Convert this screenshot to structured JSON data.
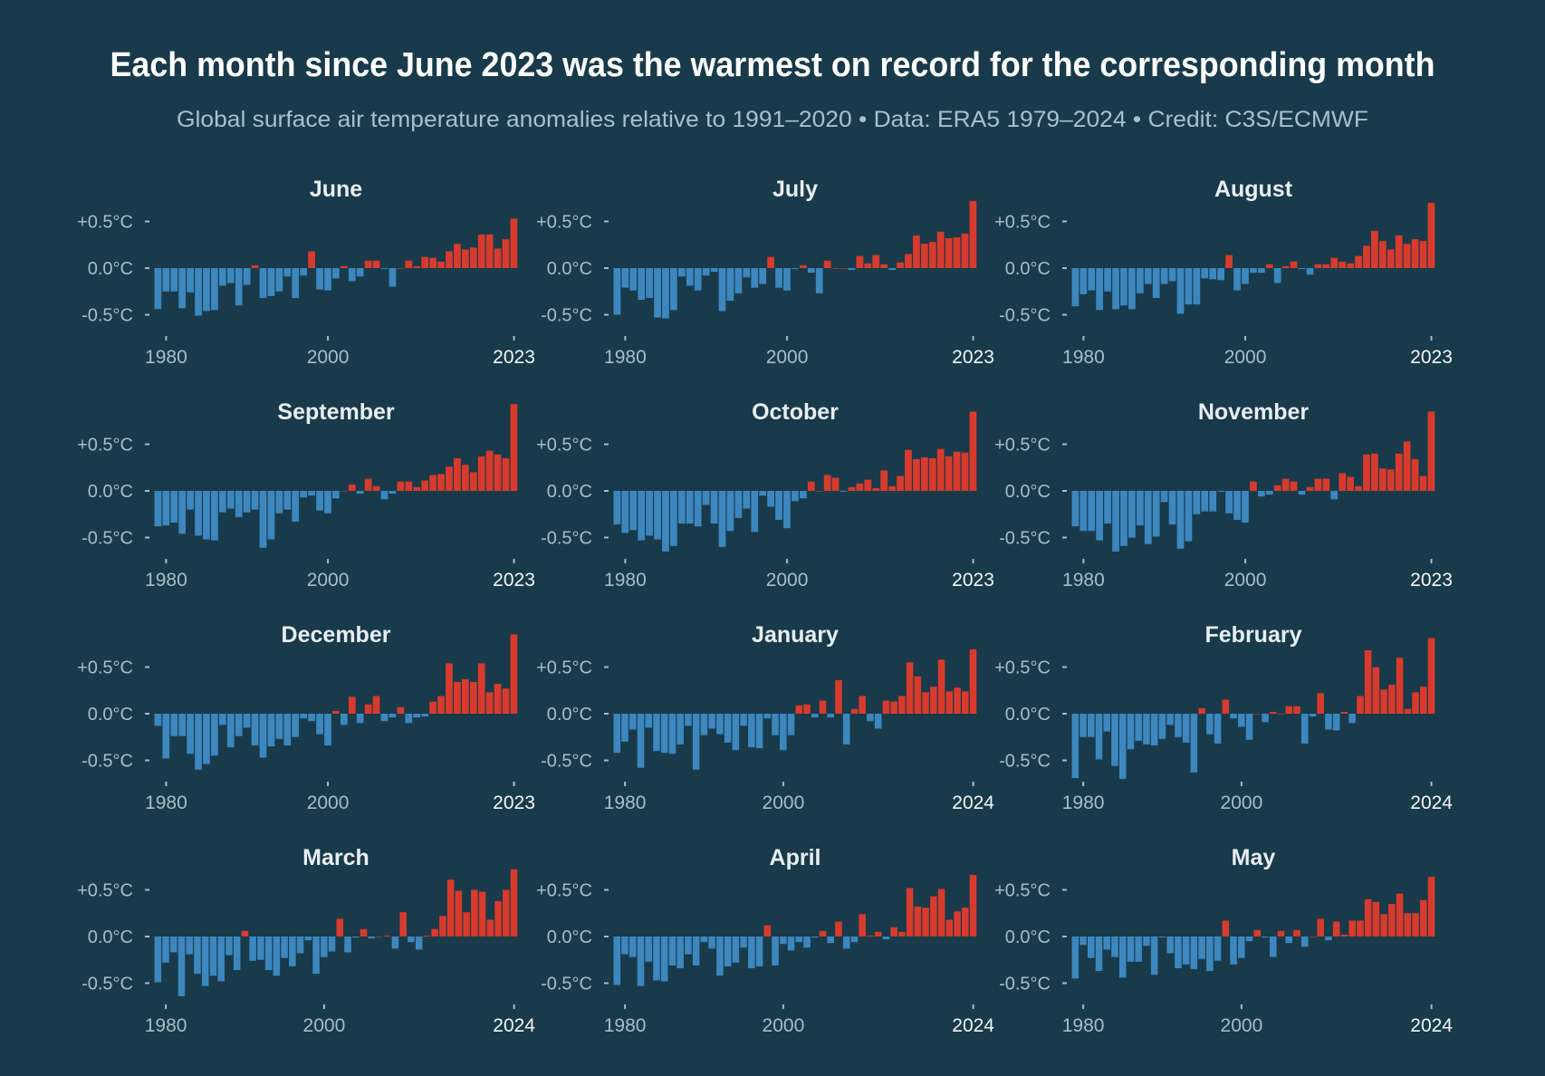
{
  "title": "Each month since June 2023 was the warmest on record for the corresponding month",
  "subtitle": "Global surface air temperature anomalies relative to 1991–2020 • Data: ERA5 1979–2024 • Credit: C3S/ECMWF",
  "colors": {
    "background": "#183a4a",
    "negative": "#3d87bf",
    "positive": "#d83b2d"
  },
  "chart_data": [
    {
      "type": "bar",
      "title": "June",
      "x_range": [
        1979,
        2023
      ],
      "ylim": [
        -0.7,
        0.95
      ],
      "unit": "°C",
      "yticklabels": [
        "+0.5°C",
        "0.0°C",
        "-0.5°C"
      ],
      "yticks": [
        0.5,
        0,
        -0.5
      ],
      "xticklabels": [
        "1980",
        "2000",
        "2023"
      ],
      "xticks": [
        1980,
        2000,
        2023
      ],
      "values": [
        -0.44,
        -0.25,
        -0.25,
        -0.43,
        -0.26,
        -0.51,
        -0.46,
        -0.45,
        -0.19,
        -0.16,
        -0.4,
        -0.18,
        0.03,
        -0.32,
        -0.3,
        -0.25,
        -0.09,
        -0.32,
        -0.08,
        0.18,
        -0.23,
        -0.24,
        -0.11,
        0.02,
        -0.14,
        -0.09,
        0.08,
        0.08,
        -0.01,
        -0.2,
        0.0,
        0.08,
        0.02,
        0.12,
        0.11,
        0.07,
        0.18,
        0.26,
        0.2,
        0.22,
        0.36,
        0.36,
        0.21,
        0.31,
        0.53
      ]
    },
    {
      "type": "bar",
      "title": "July",
      "x_range": [
        1979,
        2023
      ],
      "ylim": [
        -0.7,
        0.95
      ],
      "unit": "°C",
      "yticklabels": [
        "+0.5°C",
        "0.0°C",
        "-0.5°C"
      ],
      "yticks": [
        0.5,
        0,
        -0.5
      ],
      "xticklabels": [
        "1980",
        "2000",
        "2023"
      ],
      "xticks": [
        1980,
        2000,
        2023
      ],
      "values": [
        -0.5,
        -0.21,
        -0.24,
        -0.34,
        -0.32,
        -0.53,
        -0.54,
        -0.45,
        -0.09,
        -0.19,
        -0.24,
        -0.08,
        -0.04,
        -0.46,
        -0.35,
        -0.27,
        -0.1,
        -0.21,
        -0.17,
        0.12,
        -0.21,
        -0.24,
        -0.01,
        0.03,
        -0.05,
        -0.27,
        0.08,
        0.0,
        0.0,
        -0.02,
        0.13,
        0.05,
        0.14,
        0.04,
        -0.02,
        0.06,
        0.15,
        0.35,
        0.26,
        0.28,
        0.39,
        0.32,
        0.33,
        0.37,
        0.72
      ]
    },
    {
      "type": "bar",
      "title": "August",
      "x_range": [
        1979,
        2023
      ],
      "ylim": [
        -0.7,
        0.95
      ],
      "unit": "°C",
      "yticklabels": [
        "+0.5°C",
        "0.0°C",
        "-0.5°C"
      ],
      "yticks": [
        0.5,
        0,
        -0.5
      ],
      "xticklabels": [
        "1980",
        "2000",
        "2023"
      ],
      "xticks": [
        1980,
        2000,
        2023
      ],
      "values": [
        -0.41,
        -0.28,
        -0.24,
        -0.45,
        -0.25,
        -0.44,
        -0.4,
        -0.44,
        -0.27,
        -0.17,
        -0.32,
        -0.17,
        -0.14,
        -0.49,
        -0.39,
        -0.39,
        -0.11,
        -0.12,
        -0.13,
        0.14,
        -0.24,
        -0.17,
        -0.05,
        -0.05,
        0.04,
        -0.16,
        0.02,
        0.07,
        -0.01,
        -0.07,
        0.04,
        0.04,
        0.11,
        0.07,
        0.05,
        0.13,
        0.24,
        0.4,
        0.29,
        0.2,
        0.35,
        0.26,
        0.31,
        0.29,
        0.7
      ]
    },
    {
      "type": "bar",
      "title": "September",
      "x_range": [
        1979,
        2023
      ],
      "ylim": [
        -0.7,
        0.95
      ],
      "unit": "°C",
      "yticklabels": [
        "+0.5°C",
        "0.0°C",
        "-0.5°C"
      ],
      "yticks": [
        0.5,
        0,
        -0.5
      ],
      "xticklabels": [
        "1980",
        "2000",
        "2023"
      ],
      "xticks": [
        1980,
        2000,
        2023
      ],
      "values": [
        -0.38,
        -0.37,
        -0.34,
        -0.46,
        -0.2,
        -0.48,
        -0.52,
        -0.53,
        -0.23,
        -0.19,
        -0.28,
        -0.23,
        -0.2,
        -0.61,
        -0.52,
        -0.24,
        -0.2,
        -0.33,
        -0.07,
        -0.05,
        -0.21,
        -0.24,
        -0.08,
        0.0,
        0.07,
        -0.03,
        0.13,
        0.05,
        -0.09,
        -0.03,
        0.1,
        0.1,
        0.04,
        0.11,
        0.17,
        0.18,
        0.26,
        0.35,
        0.28,
        0.2,
        0.37,
        0.43,
        0.39,
        0.35,
        0.93
      ]
    },
    {
      "type": "bar",
      "title": "October",
      "x_range": [
        1979,
        2023
      ],
      "ylim": [
        -0.7,
        0.95
      ],
      "unit": "°C",
      "yticklabels": [
        "+0.5°C",
        "0.0°C",
        "-0.5°C"
      ],
      "yticks": [
        0.5,
        0,
        -0.5
      ],
      "xticklabels": [
        "1980",
        "2000",
        "2023"
      ],
      "xticks": [
        1980,
        2000,
        2023
      ],
      "values": [
        -0.36,
        -0.45,
        -0.42,
        -0.53,
        -0.48,
        -0.52,
        -0.65,
        -0.59,
        -0.35,
        -0.35,
        -0.38,
        -0.15,
        -0.35,
        -0.6,
        -0.43,
        -0.29,
        -0.19,
        -0.44,
        -0.05,
        -0.17,
        -0.31,
        -0.4,
        -0.11,
        -0.08,
        0.1,
        0.0,
        0.17,
        0.14,
        -0.01,
        0.04,
        0.08,
        0.12,
        0.03,
        0.22,
        0.05,
        0.16,
        0.44,
        0.34,
        0.36,
        0.35,
        0.45,
        0.37,
        0.42,
        0.41,
        0.85
      ]
    },
    {
      "type": "bar",
      "title": "November",
      "x_range": [
        1979,
        2023
      ],
      "ylim": [
        -0.7,
        0.95
      ],
      "unit": "°C",
      "yticklabels": [
        "+0.5°C",
        "0.0°C",
        "-0.5°C"
      ],
      "yticks": [
        0.5,
        0,
        -0.5
      ],
      "xticklabels": [
        "1980",
        "2000",
        "2023"
      ],
      "xticks": [
        1980,
        2000,
        2023
      ],
      "values": [
        -0.38,
        -0.43,
        -0.43,
        -0.53,
        -0.35,
        -0.65,
        -0.59,
        -0.5,
        -0.37,
        -0.57,
        -0.49,
        -0.12,
        -0.36,
        -0.62,
        -0.54,
        -0.25,
        -0.22,
        -0.22,
        -0.01,
        -0.24,
        -0.31,
        -0.34,
        0.1,
        -0.06,
        -0.04,
        0.06,
        0.13,
        0.1,
        -0.04,
        0.04,
        0.13,
        0.13,
        -0.09,
        0.19,
        0.15,
        0.05,
        0.39,
        0.4,
        0.24,
        0.23,
        0.4,
        0.53,
        0.34,
        0.16,
        0.85
      ]
    },
    {
      "type": "bar",
      "title": "December",
      "x_range": [
        1979,
        2023
      ],
      "ylim": [
        -0.7,
        0.95
      ],
      "unit": "°C",
      "yticklabels": [
        "+0.5°C",
        "0.0°C",
        "-0.5°C"
      ],
      "yticks": [
        0.5,
        0,
        -0.5
      ],
      "xticklabels": [
        "1980",
        "2000",
        "2023"
      ],
      "xticks": [
        1980,
        2000,
        2023
      ],
      "values": [
        -0.13,
        -0.48,
        -0.24,
        -0.24,
        -0.43,
        -0.6,
        -0.54,
        -0.45,
        -0.12,
        -0.36,
        -0.24,
        -0.15,
        -0.34,
        -0.47,
        -0.35,
        -0.27,
        -0.34,
        -0.25,
        -0.05,
        -0.08,
        -0.22,
        -0.34,
        0.03,
        -0.12,
        0.18,
        -0.1,
        0.1,
        0.19,
        -0.08,
        -0.04,
        0.07,
        -0.1,
        -0.04,
        -0.03,
        0.13,
        0.19,
        0.54,
        0.34,
        0.37,
        0.34,
        0.54,
        0.23,
        0.32,
        0.27,
        0.85
      ]
    },
    {
      "type": "bar",
      "title": "January",
      "x_range": [
        1979,
        2024
      ],
      "ylim": [
        -0.7,
        0.95
      ],
      "unit": "°C",
      "yticklabels": [
        "+0.5°C",
        "0.0°C",
        "-0.5°C"
      ],
      "yticks": [
        0.5,
        0,
        -0.5
      ],
      "xticklabels": [
        "1980",
        "2000",
        "2024"
      ],
      "xticks": [
        1980,
        2000,
        2024
      ],
      "values": [
        -0.42,
        -0.3,
        -0.17,
        -0.58,
        -0.15,
        -0.4,
        -0.42,
        -0.43,
        -0.33,
        -0.13,
        -0.6,
        -0.23,
        -0.16,
        -0.22,
        -0.31,
        -0.39,
        -0.13,
        -0.36,
        -0.37,
        -0.05,
        -0.23,
        -0.39,
        -0.23,
        0.09,
        0.1,
        -0.04,
        0.14,
        -0.04,
        0.36,
        -0.33,
        0.05,
        0.19,
        -0.08,
        -0.16,
        0.14,
        0.13,
        0.19,
        0.55,
        0.4,
        0.23,
        0.29,
        0.58,
        0.24,
        0.28,
        0.24,
        0.69
      ]
    },
    {
      "type": "bar",
      "title": "February",
      "x_range": [
        1979,
        2024
      ],
      "ylim": [
        -0.7,
        0.95
      ],
      "unit": "°C",
      "yticklabels": [
        "+0.5°C",
        "0.0°C",
        "-0.5°C"
      ],
      "yticks": [
        0.5,
        0,
        -0.5
      ],
      "xticklabels": [
        "1980",
        "2000",
        "2024"
      ],
      "xticks": [
        1980,
        2000,
        2024
      ],
      "values": [
        -0.69,
        -0.25,
        -0.25,
        -0.49,
        -0.19,
        -0.56,
        -0.7,
        -0.38,
        -0.29,
        -0.33,
        -0.34,
        -0.27,
        -0.12,
        -0.25,
        -0.31,
        -0.63,
        0.06,
        -0.22,
        -0.32,
        0.15,
        -0.05,
        -0.14,
        -0.28,
        0.0,
        -0.09,
        0.02,
        0.0,
        0.08,
        0.08,
        -0.32,
        -0.03,
        0.22,
        -0.17,
        -0.18,
        0.02,
        -0.1,
        0.19,
        0.68,
        0.5,
        0.26,
        0.31,
        0.6,
        0.05,
        0.23,
        0.29,
        0.81
      ]
    },
    {
      "type": "bar",
      "title": "March",
      "x_range": [
        1979,
        2024
      ],
      "ylim": [
        -0.7,
        0.95
      ],
      "unit": "°C",
      "yticklabels": [
        "+0.5°C",
        "0.0°C",
        "-0.5°C"
      ],
      "yticks": [
        0.5,
        0,
        -0.5
      ],
      "xticklabels": [
        "1980",
        "2000",
        "2024"
      ],
      "xticks": [
        1980,
        2000,
        2024
      ],
      "values": [
        -0.49,
        -0.28,
        -0.17,
        -0.64,
        -0.19,
        -0.4,
        -0.53,
        -0.42,
        -0.48,
        -0.2,
        -0.36,
        0.06,
        -0.26,
        -0.25,
        -0.36,
        -0.42,
        -0.23,
        -0.32,
        -0.18,
        -0.04,
        -0.4,
        -0.22,
        -0.16,
        0.19,
        -0.17,
        -0.01,
        0.08,
        -0.02,
        0.0,
        0.01,
        -0.13,
        0.26,
        -0.06,
        -0.14,
        0.01,
        0.08,
        0.22,
        0.61,
        0.49,
        0.26,
        0.5,
        0.48,
        0.18,
        0.38,
        0.5,
        0.72
      ]
    },
    {
      "type": "bar",
      "title": "April",
      "x_range": [
        1979,
        2024
      ],
      "ylim": [
        -0.7,
        0.95
      ],
      "unit": "°C",
      "yticklabels": [
        "+0.5°C",
        "0.0°C",
        "-0.5°C"
      ],
      "yticks": [
        0.5,
        0,
        -0.5
      ],
      "xticklabels": [
        "1980",
        "2000",
        "2024"
      ],
      "xticks": [
        1980,
        2000,
        2024
      ],
      "values": [
        -0.52,
        -0.19,
        -0.22,
        -0.53,
        -0.27,
        -0.47,
        -0.48,
        -0.31,
        -0.34,
        -0.19,
        -0.31,
        -0.06,
        -0.13,
        -0.42,
        -0.32,
        -0.28,
        -0.12,
        -0.34,
        -0.32,
        0.12,
        -0.31,
        -0.08,
        -0.15,
        -0.06,
        -0.12,
        -0.01,
        0.06,
        -0.07,
        0.16,
        -0.13,
        -0.06,
        0.24,
        0.01,
        0.05,
        -0.03,
        0.1,
        0.05,
        0.52,
        0.32,
        0.31,
        0.43,
        0.51,
        0.18,
        0.27,
        0.31,
        0.66
      ]
    },
    {
      "type": "bar",
      "title": "May",
      "x_range": [
        1979,
        2024
      ],
      "ylim": [
        -0.7,
        0.95
      ],
      "unit": "°C",
      "yticklabels": [
        "+0.5°C",
        "0.0°C",
        "-0.5°C"
      ],
      "yticks": [
        0.5,
        0,
        -0.5
      ],
      "xticklabels": [
        "1980",
        "2000",
        "2024"
      ],
      "xticks": [
        1980,
        2000,
        2024
      ],
      "values": [
        -0.45,
        -0.09,
        -0.23,
        -0.37,
        -0.14,
        -0.22,
        -0.44,
        -0.27,
        -0.27,
        -0.1,
        -0.41,
        -0.01,
        -0.18,
        -0.34,
        -0.3,
        -0.35,
        -0.24,
        -0.37,
        -0.26,
        0.17,
        -0.3,
        -0.23,
        -0.05,
        0.07,
        -0.01,
        -0.22,
        0.06,
        -0.07,
        0.07,
        -0.11,
        0.0,
        0.19,
        -0.04,
        0.16,
        0.02,
        0.17,
        0.17,
        0.4,
        0.37,
        0.24,
        0.35,
        0.46,
        0.25,
        0.25,
        0.39,
        0.64
      ]
    }
  ]
}
